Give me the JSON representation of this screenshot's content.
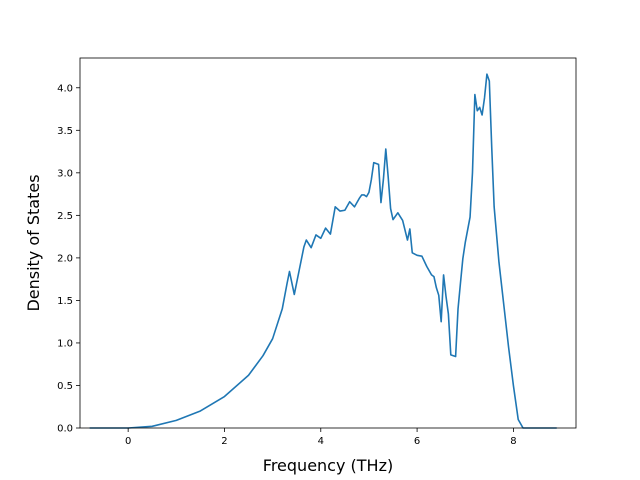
{
  "chart_data": {
    "type": "line",
    "xlabel": "Frequency (THz)",
    "ylabel": "Density of States",
    "xlim": [
      -1.0,
      9.3
    ],
    "ylim": [
      0.0,
      4.35
    ],
    "xticks": [
      0,
      2,
      4,
      6,
      8
    ],
    "xtick_labels": [
      "0",
      "2",
      "4",
      "6",
      "8"
    ],
    "yticks": [
      0.0,
      0.5,
      1.0,
      1.5,
      2.0,
      2.5,
      3.0,
      3.5,
      4.0
    ],
    "ytick_labels": [
      "0.0",
      "0.5",
      "1.0",
      "1.5",
      "2.0",
      "2.5",
      "3.0",
      "3.5",
      "4.0"
    ],
    "grid": false,
    "line_color": "#1f77b4",
    "series": [
      {
        "x": [
          -0.8,
          0.0,
          0.5,
          1.0,
          1.5,
          2.0,
          2.5,
          2.8,
          3.0,
          3.2,
          3.3,
          3.35,
          3.45,
          3.55,
          3.65,
          3.7,
          3.8,
          3.9,
          4.0,
          4.1,
          4.2,
          4.3,
          4.4,
          4.5,
          4.6,
          4.7,
          4.75,
          4.8,
          4.85,
          4.9,
          4.95,
          5.0,
          5.05,
          5.1,
          5.2,
          5.25,
          5.3,
          5.35,
          5.4,
          5.45,
          5.5,
          5.6,
          5.7,
          5.8,
          5.85,
          5.9,
          6.0,
          6.1,
          6.2,
          6.3,
          6.35,
          6.4,
          6.45,
          6.5,
          6.55,
          6.6,
          6.65,
          6.7,
          6.8,
          6.85,
          6.9,
          6.95,
          7.0,
          7.1,
          7.15,
          7.2,
          7.25,
          7.3,
          7.35,
          7.4,
          7.45,
          7.5,
          7.55,
          7.6,
          7.7,
          7.8,
          7.9,
          8.0,
          8.05,
          8.1,
          8.2,
          8.9
        ],
        "y": [
          0.0,
          0.0,
          0.02,
          0.09,
          0.2,
          0.37,
          0.62,
          0.85,
          1.05,
          1.4,
          1.7,
          1.84,
          1.57,
          1.85,
          2.13,
          2.21,
          2.12,
          2.27,
          2.23,
          2.35,
          2.28,
          2.6,
          2.55,
          2.56,
          2.66,
          2.6,
          2.65,
          2.7,
          2.74,
          2.74,
          2.72,
          2.77,
          2.92,
          3.12,
          3.1,
          2.65,
          2.92,
          3.28,
          2.95,
          2.58,
          2.45,
          2.53,
          2.44,
          2.21,
          2.34,
          2.06,
          2.03,
          2.02,
          1.9,
          1.8,
          1.78,
          1.65,
          1.56,
          1.25,
          1.8,
          1.55,
          1.34,
          0.86,
          0.84,
          1.4,
          1.7,
          1.99,
          2.18,
          2.48,
          3.0,
          3.92,
          3.73,
          3.77,
          3.68,
          3.88,
          4.16,
          4.08,
          3.3,
          2.6,
          1.95,
          1.45,
          0.95,
          0.5,
          0.3,
          0.1,
          0.0,
          0.0
        ]
      }
    ]
  }
}
